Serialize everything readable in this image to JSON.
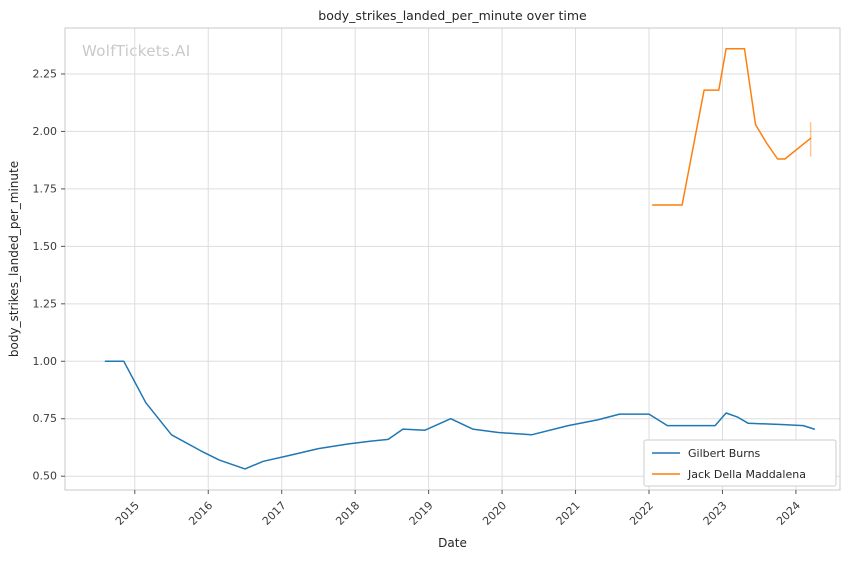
{
  "watermark": "WolfTickets.AI",
  "chart_data": {
    "type": "line",
    "title": "body_strikes_landed_per_minute over time",
    "xlabel": "Date",
    "ylabel": "body_strikes_landed_per_minute",
    "xlim": [
      2014.05,
      2024.6
    ],
    "ylim": [
      0.44,
      2.45
    ],
    "xticks": [
      2015,
      2016,
      2017,
      2018,
      2019,
      2020,
      2021,
      2022,
      2023,
      2024
    ],
    "yticks": [
      0.5,
      0.75,
      1.0,
      1.25,
      1.5,
      1.75,
      2.0,
      2.25
    ],
    "grid": true,
    "legend_position": "lower right",
    "series": [
      {
        "name": "Gilbert Burns",
        "color": "#1f77b4",
        "x": [
          2014.6,
          2014.85,
          2015.15,
          2015.5,
          2015.9,
          2016.15,
          2016.5,
          2016.75,
          2017.1,
          2017.5,
          2017.9,
          2018.2,
          2018.45,
          2018.65,
          2018.95,
          2019.3,
          2019.6,
          2019.95,
          2020.4,
          2020.9,
          2021.3,
          2021.6,
          2022.0,
          2022.25,
          2022.55,
          2022.9,
          2023.05,
          2023.2,
          2023.35,
          2023.8,
          2024.1,
          2024.25
        ],
        "y": [
          1.0,
          1.0,
          0.82,
          0.68,
          0.61,
          0.57,
          0.532,
          0.565,
          0.59,
          0.62,
          0.64,
          0.652,
          0.66,
          0.705,
          0.7,
          0.75,
          0.705,
          0.69,
          0.68,
          0.72,
          0.745,
          0.77,
          0.77,
          0.72,
          0.72,
          0.72,
          0.775,
          0.758,
          0.73,
          0.725,
          0.72,
          0.705
        ]
      },
      {
        "name": "Jack Della Maddalena",
        "color": "#ff7f0e",
        "x": [
          2022.05,
          2022.45,
          2022.75,
          2022.95,
          2023.05,
          2023.3,
          2023.45,
          2023.6,
          2023.75,
          2023.85,
          2024.2
        ],
        "y": [
          1.68,
          1.68,
          2.18,
          2.18,
          2.36,
          2.36,
          2.03,
          1.95,
          1.88,
          1.88,
          1.97
        ]
      }
    ],
    "errorbars": [
      {
        "series": "Jack Della Maddalena",
        "x": 2024.2,
        "y_low": 1.89,
        "y_high": 2.04,
        "color": "#ff7f0e",
        "opacity": 0.45
      }
    ]
  }
}
